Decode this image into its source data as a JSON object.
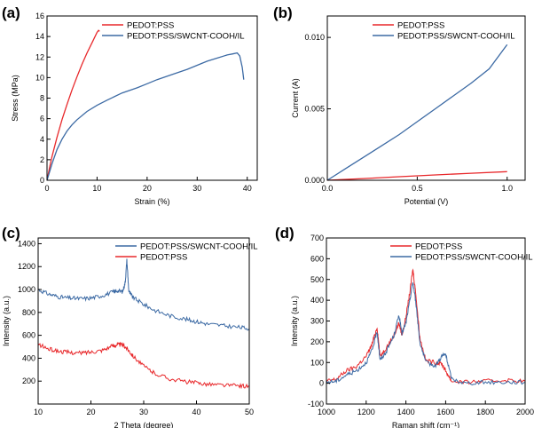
{
  "colors": {
    "red": "#e8282b",
    "blue": "#3c6aa4",
    "axis": "#000000"
  },
  "chart_data": [
    {
      "type": "line",
      "panel_label": "(a)",
      "xlabel": "Strain (%)",
      "ylabel": "Stress (MPa)",
      "xlim": [
        0,
        42
      ],
      "ylim": [
        0,
        16
      ],
      "xticks": [
        0,
        10,
        20,
        30,
        40
      ],
      "yticks": [
        0,
        2,
        4,
        6,
        8,
        10,
        12,
        14,
        16
      ],
      "legend_position": "top-left",
      "series": [
        {
          "name": "PEDOT:PSS",
          "color": "red",
          "x": [
            0,
            0.5,
            1,
            2,
            3,
            4,
            5,
            6,
            7,
            8,
            9,
            10,
            10.3,
            10.5
          ],
          "y": [
            0,
            1.2,
            2.3,
            4.2,
            5.9,
            7.4,
            8.8,
            10.1,
            11.3,
            12.4,
            13.4,
            14.4,
            14.6,
            14.5
          ]
        },
        {
          "name": "PEDOT:PSS/SWCNT-COOH/IL",
          "color": "blue",
          "x": [
            0,
            1,
            2,
            3,
            4,
            5,
            6,
            8,
            10,
            12,
            15,
            18,
            20,
            22,
            25,
            28,
            30,
            32,
            34,
            36,
            37,
            38,
            38.5,
            39,
            39.3
          ],
          "y": [
            0,
            1.6,
            3.0,
            4.0,
            4.8,
            5.4,
            5.9,
            6.7,
            7.3,
            7.8,
            8.5,
            9.0,
            9.4,
            9.8,
            10.3,
            10.8,
            11.2,
            11.6,
            11.9,
            12.2,
            12.3,
            12.4,
            12.1,
            11.0,
            9.8
          ]
        }
      ]
    },
    {
      "type": "line",
      "panel_label": "(b)",
      "xlabel": "Potential (V)",
      "ylabel": "Current (A)",
      "xlim": [
        0,
        1.1
      ],
      "ylim": [
        0,
        0.0115
      ],
      "xticks": [
        0.0,
        0.5,
        1.0
      ],
      "xtick_labels": [
        "0.0",
        "0.5",
        "1.0"
      ],
      "yticks": [
        0.0,
        0.005,
        0.01
      ],
      "ytick_labels": [
        "0.000",
        "0.005",
        "0.010"
      ],
      "legend_position": "top-right",
      "series": [
        {
          "name": "PEDOT:PSS",
          "color": "red",
          "x": [
            0,
            0.2,
            0.4,
            0.6,
            0.8,
            1.0
          ],
          "y": [
            0,
            0.00012,
            0.00025,
            0.00037,
            0.00049,
            0.0006
          ]
        },
        {
          "name": "PEDOT:PSS/SWCNT-COOH/IL",
          "color": "blue",
          "x": [
            0,
            0.1,
            0.2,
            0.3,
            0.4,
            0.5,
            0.6,
            0.7,
            0.8,
            0.9,
            1.0
          ],
          "y": [
            0,
            0.0008,
            0.0016,
            0.0024,
            0.0032,
            0.0041,
            0.005,
            0.0059,
            0.0068,
            0.0078,
            0.0095
          ]
        }
      ]
    },
    {
      "type": "line",
      "panel_label": "(c)",
      "xlabel": "2 Theta (degree)",
      "ylabel": "Intensity (a.u.)",
      "xlim": [
        10,
        50
      ],
      "ylim": [
        0,
        1450
      ],
      "xticks": [
        10,
        20,
        30,
        40,
        50
      ],
      "yticks": [
        200,
        400,
        600,
        800,
        1000,
        1200,
        1400
      ],
      "legend_position": "top-right",
      "series": [
        {
          "name": "PEDOT:PSS/SWCNT-COOH/IL",
          "color": "blue",
          "x": [
            10,
            12,
            14,
            16,
            18,
            20,
            22,
            24,
            25,
            26,
            26.5,
            26.8,
            27.2,
            28,
            30,
            32,
            35,
            38,
            40,
            42,
            45,
            48,
            50
          ],
          "y": [
            1000,
            960,
            935,
            925,
            920,
            925,
            945,
            975,
            990,
            980,
            1060,
            1255,
            980,
            930,
            870,
            820,
            770,
            740,
            720,
            700,
            685,
            670,
            660
          ]
        },
        {
          "name": "PEDOT:PSS",
          "color": "red",
          "x": [
            10,
            12,
            14,
            16,
            18,
            20,
            22,
            24,
            25,
            26,
            27,
            28,
            30,
            32,
            35,
            38,
            40,
            42,
            45,
            48,
            50
          ],
          "y": [
            520,
            480,
            460,
            450,
            445,
            455,
            470,
            505,
            520,
            515,
            480,
            420,
            330,
            270,
            220,
            195,
            185,
            175,
            165,
            160,
            155
          ]
        }
      ]
    },
    {
      "type": "line",
      "panel_label": "(d)",
      "xlabel": "Raman shift (cm⁻¹)",
      "ylabel": "Intensity (a.u.)",
      "xlim": [
        1000,
        2000
      ],
      "ylim": [
        -100,
        700
      ],
      "xticks": [
        1000,
        1200,
        1400,
        1600,
        1800,
        2000
      ],
      "yticks": [
        -100,
        0,
        100,
        200,
        300,
        400,
        500,
        600,
        700
      ],
      "legend_position": "top-right",
      "series": [
        {
          "name": "PEDOT:PSS",
          "color": "red",
          "x": [
            1000,
            1050,
            1100,
            1150,
            1200,
            1230,
            1255,
            1270,
            1300,
            1340,
            1365,
            1380,
            1400,
            1420,
            1435,
            1450,
            1470,
            1500,
            1550,
            1580,
            1600,
            1630,
            1700,
            1800,
            1900,
            2000
          ],
          "y": [
            10,
            20,
            60,
            80,
            130,
            190,
            270,
            130,
            170,
            230,
            290,
            230,
            320,
            440,
            550,
            430,
            220,
            110,
            100,
            95,
            60,
            10,
            5,
            10,
            15,
            10
          ]
        },
        {
          "name": "PEDOT:PSS/SWCNT-COOH/IL",
          "color": "blue",
          "x": [
            1000,
            1050,
            1100,
            1150,
            1200,
            1230,
            1255,
            1270,
            1300,
            1340,
            1365,
            1380,
            1400,
            1420,
            1435,
            1450,
            1470,
            1500,
            1550,
            1580,
            1600,
            1630,
            1700,
            1800,
            1900,
            2000
          ],
          "y": [
            5,
            10,
            40,
            60,
            100,
            160,
            250,
            110,
            150,
            230,
            330,
            240,
            290,
            400,
            490,
            390,
            200,
            100,
            85,
            130,
            140,
            20,
            0,
            5,
            5,
            5
          ]
        }
      ]
    }
  ]
}
